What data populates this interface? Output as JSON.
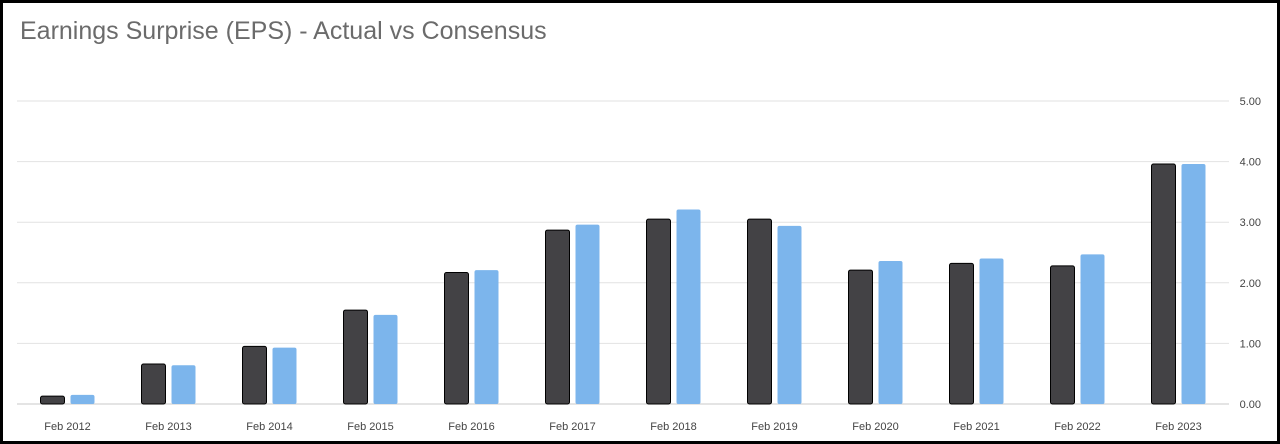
{
  "chart_data": {
    "type": "bar",
    "title": "Earnings Surprise (EPS) - Actual vs Consensus",
    "xlabel": "",
    "ylabel": "",
    "categories": [
      "Feb 2012",
      "Feb 2013",
      "Feb 2014",
      "Feb 2015",
      "Feb 2016",
      "Feb 2017",
      "Feb 2018",
      "Feb 2019",
      "Feb 2020",
      "Feb 2021",
      "Feb 2022",
      "Feb 2023"
    ],
    "series": [
      {
        "color": "#434245",
        "values": [
          0.13,
          0.66,
          0.95,
          1.55,
          2.17,
          2.87,
          3.05,
          3.05,
          2.21,
          2.32,
          2.28,
          3.96
        ]
      },
      {
        "color": "#7cb5ec",
        "values": [
          0.15,
          0.64,
          0.93,
          1.47,
          2.21,
          2.96,
          3.21,
          2.94,
          2.36,
          2.4,
          2.47,
          3.96
        ]
      }
    ],
    "ylim": [
      0,
      5
    ],
    "yticks": [
      "0.00",
      "1.00",
      "2.00",
      "3.00",
      "4.00",
      "5.00"
    ],
    "y_axis_side": "right",
    "grid": true,
    "legend": "none"
  }
}
